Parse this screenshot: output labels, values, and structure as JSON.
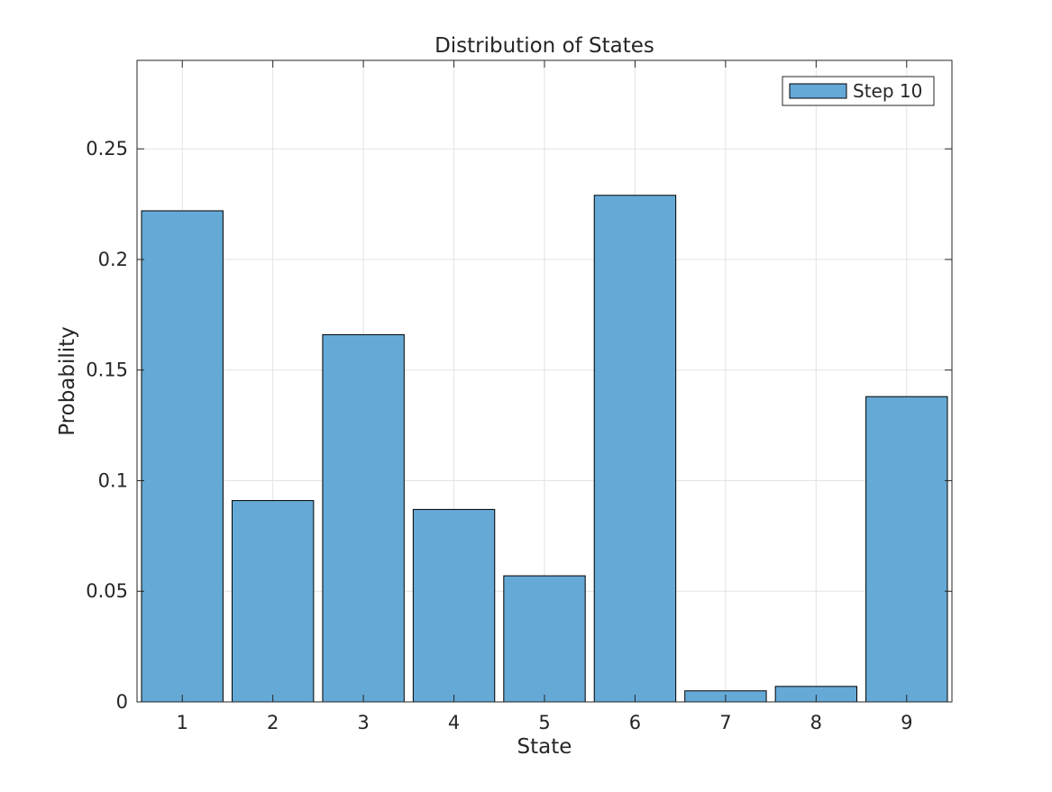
{
  "chart_data": {
    "type": "bar",
    "title": "Distribution of States",
    "xlabel": "State",
    "ylabel": "Probability",
    "categories": [
      "1",
      "2",
      "3",
      "4",
      "5",
      "6",
      "7",
      "8",
      "9"
    ],
    "series": [
      {
        "name": "Step 10",
        "values": [
          0.222,
          0.091,
          0.166,
          0.087,
          0.057,
          0.229,
          0.005,
          0.007,
          0.138
        ]
      }
    ],
    "ylim": [
      0,
      0.29
    ],
    "yticks": [
      0,
      0.05,
      0.1,
      0.15,
      0.2,
      0.25
    ],
    "ytick_labels": [
      "0",
      "0.05",
      "0.1",
      "0.15",
      "0.2",
      "0.25"
    ],
    "grid": true,
    "legend_position": "top-right",
    "colors": {
      "bar_fill": "#65a9d7",
      "bar_edge": "#000000",
      "grid": "#e3e3e3",
      "axis": "#262626",
      "background": "#ffffff"
    }
  }
}
